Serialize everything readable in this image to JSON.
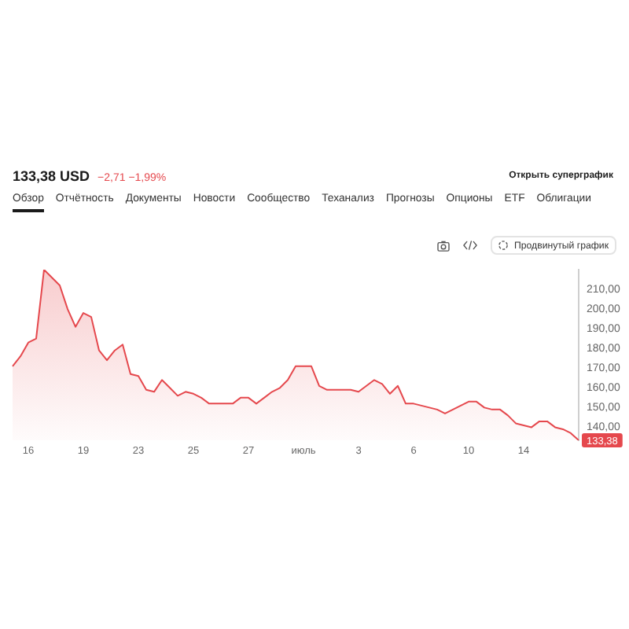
{
  "chart_data": {
    "type": "area",
    "title": "133,38 USD",
    "subtitle": "−2,71 −1,99%",
    "annotations": [
      "Открыть суперграфик",
      "Обзор",
      "Отчётность",
      "Документы",
      "Новости",
      "Сообщество",
      "Теханализ",
      "Прогнозы",
      "Опционы",
      "ETF",
      "Облигации",
      "Продвинутый график"
    ],
    "categories": [
      null,
      null,
      "16",
      null,
      null,
      null,
      null,
      null,
      null,
      "19",
      null,
      null,
      null,
      null,
      null,
      null,
      "23",
      null,
      null,
      null,
      null,
      null,
      null,
      "25",
      null,
      null,
      null,
      null,
      null,
      null,
      "27",
      null,
      null,
      null,
      null,
      null,
      null,
      "июль",
      null,
      null,
      null,
      null,
      null,
      null,
      "3",
      null,
      null,
      null,
      null,
      null,
      null,
      "6",
      null,
      null,
      null,
      null,
      null,
      null,
      "10",
      null,
      null,
      null,
      null,
      null,
      null,
      "14",
      null,
      null,
      null,
      null,
      null,
      null,
      null
    ],
    "values": [
      171,
      176,
      183,
      185,
      220,
      216,
      212,
      200,
      191,
      198,
      196,
      179,
      174,
      179,
      182,
      167,
      166,
      159,
      158,
      164,
      160,
      156,
      158,
      157,
      155,
      152,
      152,
      152,
      152,
      155,
      155,
      152,
      155,
      158,
      160,
      164,
      171,
      171,
      171,
      161,
      159,
      159,
      159,
      159,
      158,
      161,
      164,
      162,
      157,
      161,
      152,
      152,
      151,
      150,
      149,
      147,
      149,
      151,
      153,
      153,
      150,
      149,
      149,
      146,
      142,
      141,
      140,
      143,
      143,
      140,
      139,
      137,
      133.38
    ],
    "value_labels": [
      null,
      null,
      null,
      null,
      null,
      null,
      null,
      null,
      null,
      null,
      null,
      null,
      null,
      null,
      null,
      null,
      null,
      null,
      null,
      null,
      null,
      null,
      null,
      null,
      null,
      null,
      null,
      null,
      null,
      null,
      null,
      null,
      null,
      null,
      null,
      null,
      null,
      null,
      null,
      null,
      null,
      null,
      null,
      null,
      null,
      null,
      null,
      null,
      null,
      null,
      null,
      null,
      null,
      null,
      null,
      null,
      null,
      null,
      null,
      null,
      null,
      null,
      null,
      null,
      null,
      null,
      null,
      null,
      null,
      null,
      null,
      null,
      "133,38"
    ],
    "color": "#e5484d",
    "marker": "none",
    "ylim": [
      133.38,
      220
    ],
    "yticks": [
      {
        "value": 140,
        "label": "140,00"
      },
      {
        "value": 150,
        "label": "150,00"
      },
      {
        "value": 160,
        "label": "160,00"
      },
      {
        "value": 170,
        "label": "170,00"
      },
      {
        "value": 180,
        "label": "180,00"
      },
      {
        "value": 190,
        "label": "190,00"
      },
      {
        "value": 200,
        "label": "200,00"
      },
      {
        "value": 210,
        "label": "210,00"
      }
    ]
  }
}
